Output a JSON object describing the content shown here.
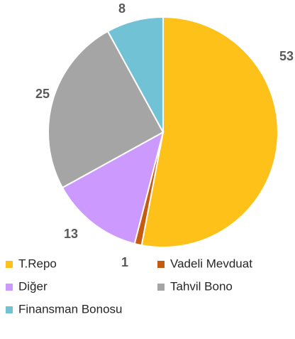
{
  "chart_data": {
    "type": "pie",
    "categories": [
      "T.Repo",
      "Vadeli Mevduat",
      "Diğer",
      "Tahvil Bono",
      "Finansman Bonosu"
    ],
    "values": [
      53,
      1,
      13,
      25,
      8
    ],
    "colors": [
      "#FDC11A",
      "#C55A11",
      "#CC99FF",
      "#A5A5A5",
      "#72C2D6"
    ]
  }
}
